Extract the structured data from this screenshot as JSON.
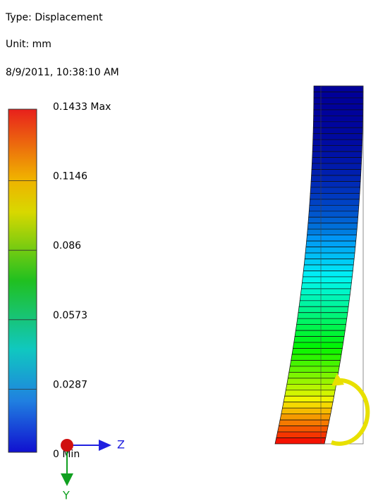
{
  "header": {
    "type": "Type: Displacement",
    "unit": "Unit: mm",
    "timestamp": "8/9/2011, 10:38:10 AM"
  },
  "legend": {
    "labels": [
      "0.1433 Max",
      "0.1146",
      "0.086",
      "0.0573",
      "0.0287",
      "0 Min"
    ]
  },
  "triad": {
    "z": "Z",
    "y": "Y"
  }
}
